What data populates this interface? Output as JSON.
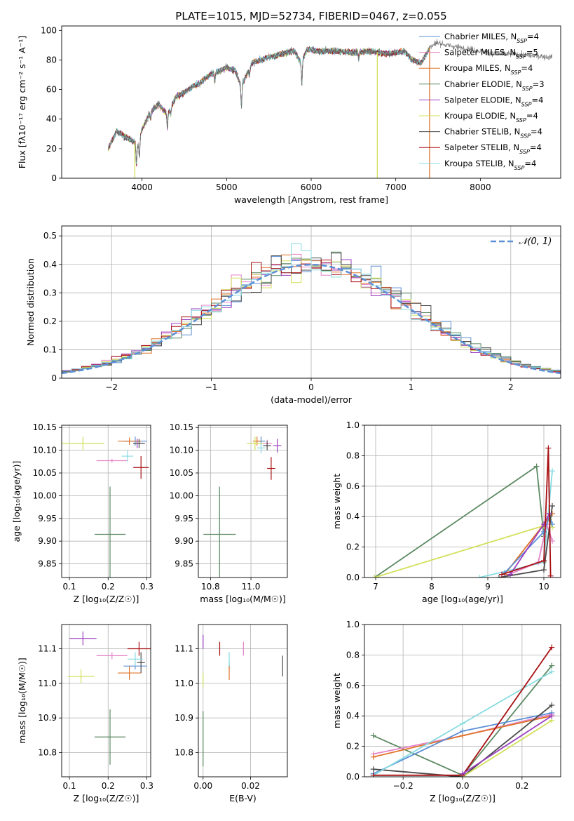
{
  "colors": {
    "chabrier_miles": "#5b8fd6",
    "salpeter_miles": "#e583c8",
    "kroupa_miles": "#e0752a",
    "chabrier_elodie": "#5d8a63",
    "salpeter_elodie": "#9b3fc0",
    "kroupa_elodie": "#d2e05a",
    "chabrier_stelib": "#4a4a4a",
    "salpeter_stelib": "#a80f12",
    "kroupa_stelib": "#87dbe0",
    "normal": "#5b8fd6",
    "grid": "#b0b0b0"
  },
  "chart_data": [
    {
      "id": "spectrum",
      "type": "line",
      "title": "PLATE=1015, MJD=52734, FIBERID=0467, z=0.055",
      "xlabel": "wavelength [Angstrom, rest frame]",
      "ylabel": "Flux [fλ10⁻¹⁷ erg cm⁻² s⁻¹ A⁻¹]",
      "xlim": [
        3050,
        8950
      ],
      "ylim": [
        0,
        103
      ],
      "xticks": [
        4000,
        5000,
        6000,
        7000,
        8000
      ],
      "yticks": [
        0,
        20,
        40,
        60,
        80,
        100
      ],
      "grid": false,
      "legend_position": "top-right",
      "legend": [
        {
          "label": "Chabrier MILES, N_SSP=4",
          "color": "chabrier_miles"
        },
        {
          "label": "Salpeter MILES, N_SSP=5",
          "color": "salpeter_miles"
        },
        {
          "label": "Kroupa MILES, N_SSP=4",
          "color": "kroupa_miles"
        },
        {
          "label": "Chabrier ELODIE, N_SSP=3",
          "color": "chabrier_elodie"
        },
        {
          "label": "Salpeter ELODIE, N_SSP=4",
          "color": "salpeter_elodie"
        },
        {
          "label": "Kroupa ELODIE, N_SSP=4",
          "color": "kroupa_elodie"
        },
        {
          "label": "Chabrier STELIB, N_SSP=4",
          "color": "chabrier_stelib"
        },
        {
          "label": "Salpeter STELIB, N_SSP=4",
          "color": "salpeter_stelib"
        },
        {
          "label": "Kroupa STELIB, N_SSP=4",
          "color": "kroupa_stelib"
        }
      ],
      "continuum": {
        "x": [
          3600,
          3700,
          3800,
          3900,
          3950,
          4000,
          4100,
          4200,
          4300,
          4400,
          4500,
          4600,
          4700,
          4800,
          4900,
          5000,
          5100,
          5175,
          5300,
          5400,
          5500,
          5600,
          5700,
          5800,
          5880,
          5950,
          6100,
          6300,
          6500,
          6700,
          6900,
          7000,
          7100,
          7200,
          7300,
          7400,
          7500,
          7600,
          7700,
          7800,
          7900,
          8000,
          8200,
          8400,
          8600,
          8800
        ],
        "y": [
          20,
          32,
          28,
          25,
          22,
          33,
          45,
          50,
          43,
          55,
          58,
          62,
          65,
          70,
          72,
          75,
          73,
          62,
          78,
          80,
          82,
          83,
          85,
          86,
          78,
          87,
          86,
          86,
          85,
          86,
          84,
          85,
          86,
          80,
          78,
          88,
          92,
          90,
          89,
          88,
          87,
          86,
          84,
          84,
          83,
          82
        ]
      },
      "absorption_features": [
        {
          "x": 3934,
          "depth": 14
        },
        {
          "x": 3969,
          "depth": 12
        },
        {
          "x": 4102,
          "depth": 5
        },
        {
          "x": 4300,
          "depth": 8
        },
        {
          "x": 4340,
          "depth": 5
        },
        {
          "x": 4861,
          "depth": 6
        },
        {
          "x": 5175,
          "depth": 14
        },
        {
          "x": 5270,
          "depth": 5
        },
        {
          "x": 5890,
          "depth": 16
        },
        {
          "x": 6563,
          "depth": 5
        }
      ],
      "artifacts": [
        {
          "x": 3915,
          "bottom": 0,
          "color": "kroupa_elodie"
        },
        {
          "x": 6782,
          "bottom": 0,
          "color": "kroupa_elodie"
        },
        {
          "x": 7400,
          "bottom": 0,
          "color": "kroupa_miles"
        }
      ],
      "model_range": [
        3600,
        7400
      ]
    },
    {
      "id": "residuals",
      "type": "histogram",
      "xlabel": "(data-model)/error",
      "ylabel": "Normed distribution",
      "xlim": [
        -2.5,
        2.5
      ],
      "ylim": [
        0,
        0.535
      ],
      "xticks": [
        -2,
        -1,
        0,
        1,
        2
      ],
      "yticks": [
        0.0,
        0.1,
        0.2,
        0.3,
        0.4,
        0.5
      ],
      "grid": true,
      "legend_position": "top-right",
      "legend": [
        {
          "label": "𝒩(0, 1)",
          "color": "normal"
        }
      ],
      "bin_width": 0.1,
      "bin_start": -2.5,
      "series_order": [
        "chabrier_miles",
        "salpeter_miles",
        "kroupa_miles",
        "chabrier_elodie",
        "salpeter_elodie",
        "kroupa_elodie",
        "chabrier_stelib",
        "salpeter_stelib",
        "kroupa_stelib"
      ]
    },
    {
      "id": "age_vs_z",
      "type": "scatter",
      "xlabel": "Z [log₁₀(Z/Z☉)]",
      "ylabel": "age  [log₁₀(age/yr)]",
      "xlim": [
        0.08,
        0.31
      ],
      "ylim": [
        9.82,
        10.155
      ],
      "xticks": [
        0.1,
        0.2,
        0.3
      ],
      "xtick_labels": [
        "0.1",
        "0.2",
        "0.3"
      ],
      "yticks": [
        9.85,
        9.9,
        9.95,
        10.0,
        10.05,
        10.1,
        10.15
      ],
      "ytick_labels": [
        "9.85",
        "9.90",
        "9.95",
        "10.00",
        "10.05",
        "10.10",
        "10.15"
      ],
      "grid": true,
      "points": [
        {
          "s": "chabrier_miles",
          "x": 0.27,
          "y": 10.12,
          "xe": 0.03,
          "ye": 0.01
        },
        {
          "s": "salpeter_miles",
          "x": 0.21,
          "y": 10.077,
          "xe": 0.04,
          "ye": 0.004
        },
        {
          "s": "kroupa_miles",
          "x": 0.255,
          "y": 10.12,
          "xe": 0.03,
          "ye": 0.008
        },
        {
          "s": "chabrier_elodie",
          "x": 0.205,
          "y": 9.915,
          "xe": 0.04,
          "ye": 0.105
        },
        {
          "s": "salpeter_elodie",
          "x": 0.275,
          "y": 10.115,
          "xe": 0.01,
          "ye": 0.01
        },
        {
          "s": "kroupa_elodie",
          "x": 0.135,
          "y": 10.115,
          "xe": 0.055,
          "ye": 0.015
        },
        {
          "s": "chabrier_stelib",
          "x": 0.28,
          "y": 10.115,
          "xe": 0.015,
          "ye": 0.01
        },
        {
          "s": "salpeter_stelib",
          "x": 0.285,
          "y": 10.062,
          "xe": 0.02,
          "ye": 0.025
        },
        {
          "s": "kroupa_stelib",
          "x": 0.25,
          "y": 10.087,
          "xe": 0.015,
          "ye": 0.012
        }
      ]
    },
    {
      "id": "age_vs_mass",
      "type": "scatter",
      "xlabel": "mass [log₁₀(M/M☉)]",
      "ylabel": "",
      "xlim": [
        10.74,
        11.18
      ],
      "ylim": [
        9.82,
        10.155
      ],
      "xticks": [
        10.8,
        11.0
      ],
      "xtick_labels": [
        "10.8",
        "11.0"
      ],
      "yticks": [
        9.85,
        9.9,
        9.95,
        10.0,
        10.05,
        10.1,
        10.15
      ],
      "ytick_labels": [
        "9.85",
        "9.90",
        "9.95",
        "10.00",
        "10.05",
        "10.10",
        "10.15"
      ],
      "grid": true,
      "points": [
        {
          "s": "chabrier_miles",
          "x": 11.05,
          "y": 10.12,
          "xe": 0.02,
          "ye": 0.01
        },
        {
          "s": "salpeter_miles",
          "x": 11.08,
          "y": 10.115,
          "xe": 0.025,
          "ye": 0.008
        },
        {
          "s": "kroupa_miles",
          "x": 11.03,
          "y": 10.12,
          "xe": 0.02,
          "ye": 0.01
        },
        {
          "s": "chabrier_elodie",
          "x": 10.845,
          "y": 9.915,
          "xe": 0.08,
          "ye": 0.105
        },
        {
          "s": "salpeter_elodie",
          "x": 11.13,
          "y": 10.11,
          "xe": 0.02,
          "ye": 0.015
        },
        {
          "s": "kroupa_elodie",
          "x": 11.02,
          "y": 10.115,
          "xe": 0.04,
          "ye": 0.015
        },
        {
          "s": "chabrier_stelib",
          "x": 11.08,
          "y": 10.11,
          "xe": 0.02,
          "ye": 0.01
        },
        {
          "s": "salpeter_stelib",
          "x": 11.1,
          "y": 10.06,
          "xe": 0.02,
          "ye": 0.025
        },
        {
          "s": "kroupa_stelib",
          "x": 11.05,
          "y": 10.105,
          "xe": 0.02,
          "ye": 0.012
        }
      ]
    },
    {
      "id": "weight_vs_age",
      "type": "line",
      "xlabel": "age  [log₁₀(age/yr)]",
      "ylabel": "mass weight",
      "xlim": [
        6.8,
        10.3
      ],
      "ylim": [
        0,
        1
      ],
      "xticks": [
        7,
        8,
        9,
        10
      ],
      "xtick_labels": [
        "7",
        "8",
        "9",
        "10"
      ],
      "yticks": [
        0.0,
        0.2,
        0.4,
        0.6,
        0.8,
        1.0
      ],
      "ytick_labels": [
        "0.0",
        "0.2",
        "0.4",
        "0.6",
        "0.8",
        "1.0"
      ],
      "grid": true,
      "series": [
        {
          "s": "chabrier_elodie",
          "x": [
            6.98,
            9.87,
            10.0
          ],
          "y": [
            0.0,
            0.73,
            0.27
          ]
        },
        {
          "s": "kroupa_elodie",
          "x": [
            6.98,
            10.0,
            10.1,
            10.15
          ],
          "y": [
            0.0,
            0.34,
            0.38,
            0.33
          ]
        },
        {
          "s": "kroupa_stelib",
          "x": [
            8.85,
            10.0,
            10.15
          ],
          "y": [
            0.0,
            0.1,
            0.7
          ]
        },
        {
          "s": "salpeter_miles",
          "x": [
            9.25,
            9.9,
            10.05,
            10.15
          ],
          "y": [
            0.0,
            0.1,
            0.35,
            0.24
          ]
        },
        {
          "s": "kroupa_miles",
          "x": [
            9.3,
            10.0,
            10.15
          ],
          "y": [
            0.02,
            0.35,
            0.42
          ]
        },
        {
          "s": "chabrier_miles",
          "x": [
            9.3,
            10.0,
            10.1,
            10.15
          ],
          "y": [
            0.03,
            0.3,
            0.4,
            0.35
          ]
        },
        {
          "s": "chabrier_stelib",
          "x": [
            9.2,
            10.0,
            10.15
          ],
          "y": [
            0.0,
            0.05,
            0.47
          ]
        },
        {
          "s": "salpeter_elodie",
          "x": [
            9.4,
            10.0,
            10.1
          ],
          "y": [
            0.02,
            0.35,
            0.42
          ]
        },
        {
          "s": "salpeter_stelib",
          "x": [
            9.25,
            10.0,
            10.08,
            10.12
          ],
          "y": [
            0.02,
            0.11,
            0.85,
            0.01
          ]
        }
      ]
    },
    {
      "id": "mass_vs_z",
      "type": "scatter",
      "xlabel": "Z [log₁₀(Z/Z☉)]",
      "ylabel": "mass [log₁₀(M/M☉)]",
      "xlim": [
        0.08,
        0.31
      ],
      "ylim": [
        10.73,
        11.17
      ],
      "xticks": [
        0.1,
        0.2,
        0.3
      ],
      "xtick_labels": [
        "0.1",
        "0.2",
        "0.3"
      ],
      "yticks": [
        10.8,
        10.9,
        11.0,
        11.1
      ],
      "ytick_labels": [
        "10.8",
        "10.9",
        "11.0",
        "11.1"
      ],
      "grid": true,
      "points": [
        {
          "s": "chabrier_miles",
          "x": 0.27,
          "y": 11.05,
          "xe": 0.03,
          "ye": 0.01
        },
        {
          "s": "salpeter_miles",
          "x": 0.21,
          "y": 11.08,
          "xe": 0.04,
          "ye": 0.01
        },
        {
          "s": "kroupa_miles",
          "x": 0.255,
          "y": 11.03,
          "xe": 0.03,
          "ye": 0.02
        },
        {
          "s": "chabrier_elodie",
          "x": 0.205,
          "y": 10.845,
          "xe": 0.04,
          "ye": 0.08
        },
        {
          "s": "salpeter_elodie",
          "x": 0.135,
          "y": 11.13,
          "xe": 0.035,
          "ye": 0.02
        },
        {
          "s": "kroupa_elodie",
          "x": 0.13,
          "y": 11.02,
          "xe": 0.035,
          "ye": 0.02
        },
        {
          "s": "chabrier_stelib",
          "x": 0.285,
          "y": 11.06,
          "xe": 0.01,
          "ye": 0.03
        },
        {
          "s": "salpeter_stelib",
          "x": 0.28,
          "y": 11.1,
          "xe": 0.03,
          "ye": 0.02
        },
        {
          "s": "kroupa_stelib",
          "x": 0.27,
          "y": 11.07,
          "xe": 0.02,
          "ye": 0.02
        }
      ]
    },
    {
      "id": "mass_vs_ebv",
      "type": "scatter",
      "xlabel": "E(B-V)",
      "ylabel": "",
      "xlim": [
        -0.002,
        0.0355
      ],
      "ylim": [
        10.73,
        11.17
      ],
      "xticks": [
        0.0,
        0.02
      ],
      "xtick_labels": [
        "0.00",
        "0.02"
      ],
      "yticks": [
        10.8,
        10.9,
        11.0,
        11.1
      ],
      "ytick_labels": [
        "10.8",
        "10.9",
        "11.0",
        "11.1"
      ],
      "grid": true,
      "points": [
        {
          "s": "chabrier_miles",
          "x": 0.011,
          "y": 11.05,
          "xe": 0.0,
          "ye": 0.01
        },
        {
          "s": "salpeter_miles",
          "x": 0.017,
          "y": 11.1,
          "xe": 0.0,
          "ye": 0.02
        },
        {
          "s": "kroupa_miles",
          "x": 0.011,
          "y": 11.03,
          "xe": 0.0,
          "ye": 0.02
        },
        {
          "s": "chabrier_elodie",
          "x": 0.0,
          "y": 10.84,
          "xe": 0.0,
          "ye": 0.08
        },
        {
          "s": "salpeter_elodie",
          "x": 0.0,
          "y": 11.12,
          "xe": 0.0,
          "ye": 0.02
        },
        {
          "s": "kroupa_elodie",
          "x": 0.0,
          "y": 11.01,
          "xe": 0.0,
          "ye": 0.02
        },
        {
          "s": "chabrier_stelib",
          "x": 0.0335,
          "y": 11.05,
          "xe": 0.0,
          "ye": 0.03
        },
        {
          "s": "salpeter_stelib",
          "x": 0.007,
          "y": 11.1,
          "xe": 0.0,
          "ye": 0.02
        },
        {
          "s": "kroupa_stelib",
          "x": 0.011,
          "y": 11.07,
          "xe": 0.0,
          "ye": 0.02
        }
      ]
    },
    {
      "id": "weight_vs_z",
      "type": "line",
      "xlabel": "Z [log₁₀(Z/Z☉)]",
      "ylabel": "mass weight",
      "xlim": [
        -0.33,
        0.33
      ],
      "ylim": [
        0,
        1
      ],
      "xticks": [
        -0.2,
        0.0,
        0.2
      ],
      "xtick_labels": [
        "−0.2",
        "0.0",
        "0.2"
      ],
      "yticks": [
        0.0,
        0.2,
        0.4,
        0.6,
        0.8,
        1.0
      ],
      "ytick_labels": [
        "0.0",
        "0.2",
        "0.4",
        "0.6",
        "0.8",
        "1.0"
      ],
      "grid": true,
      "series": [
        {
          "s": "chabrier_elodie",
          "x": [
            -0.3,
            0.0,
            0.3
          ],
          "y": [
            0.27,
            0.01,
            0.73
          ]
        },
        {
          "s": "salpeter_miles",
          "x": [
            -0.3,
            0.0,
            0.3
          ],
          "y": [
            0.15,
            0.27,
            0.41
          ]
        },
        {
          "s": "kroupa_miles",
          "x": [
            -0.3,
            0.0,
            0.3
          ],
          "y": [
            0.13,
            0.27,
            0.4
          ]
        },
        {
          "s": "chabrier_miles",
          "x": [
            -0.3,
            0.0,
            0.3
          ],
          "y": [
            0.02,
            0.3,
            0.42
          ]
        },
        {
          "s": "chabrier_stelib",
          "x": [
            -0.3,
            0.0,
            0.3
          ],
          "y": [
            0.05,
            0.0,
            0.47
          ]
        },
        {
          "s": "kroupa_stelib",
          "x": [
            -0.3,
            0.0,
            0.3
          ],
          "y": [
            0.01,
            0.35,
            0.69
          ]
        },
        {
          "s": "kroupa_elodie",
          "x": [
            0.0,
            0.3
          ],
          "y": [
            0.0,
            0.37
          ]
        },
        {
          "s": "salpeter_stelib",
          "x": [
            -0.3,
            0.0,
            0.3
          ],
          "y": [
            0.01,
            0.01,
            0.85
          ]
        },
        {
          "s": "salpeter_elodie",
          "x": [
            0.0,
            0.3
          ],
          "y": [
            0.02,
            0.4
          ]
        }
      ]
    }
  ]
}
